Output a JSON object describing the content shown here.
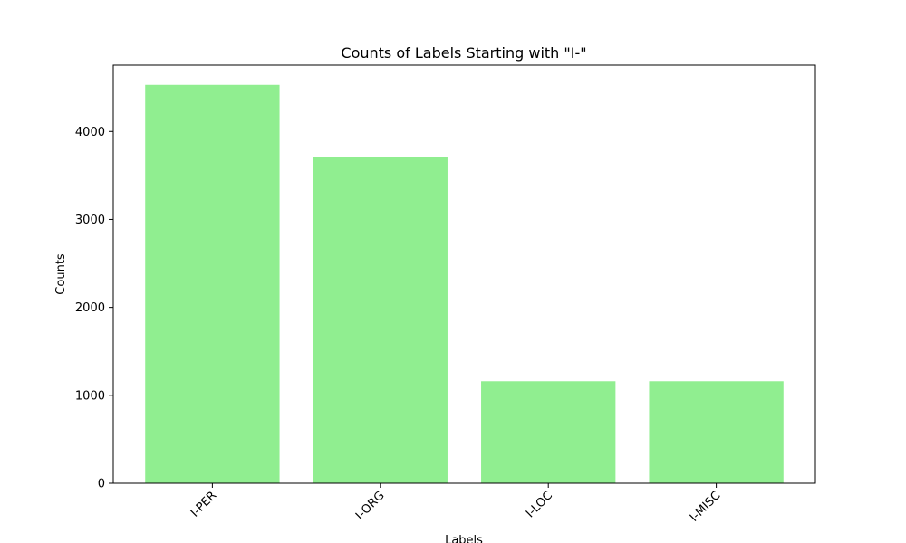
{
  "chart_data": {
    "type": "bar",
    "title": "Counts of Labels Starting with \"I-\"",
    "xlabel": "Labels",
    "ylabel": "Counts",
    "categories": [
      "I-PER",
      "I-ORG",
      "I-LOC",
      "I-MISC"
    ],
    "values": [
      4530,
      3710,
      1160,
      1160
    ],
    "ylim": [
      0,
      4754
    ],
    "yticks": [
      0,
      1000,
      2000,
      3000,
      4000
    ],
    "xtick_rotation_deg": 45,
    "bar_color": "#90ee90",
    "grid": false,
    "legend": "none"
  }
}
